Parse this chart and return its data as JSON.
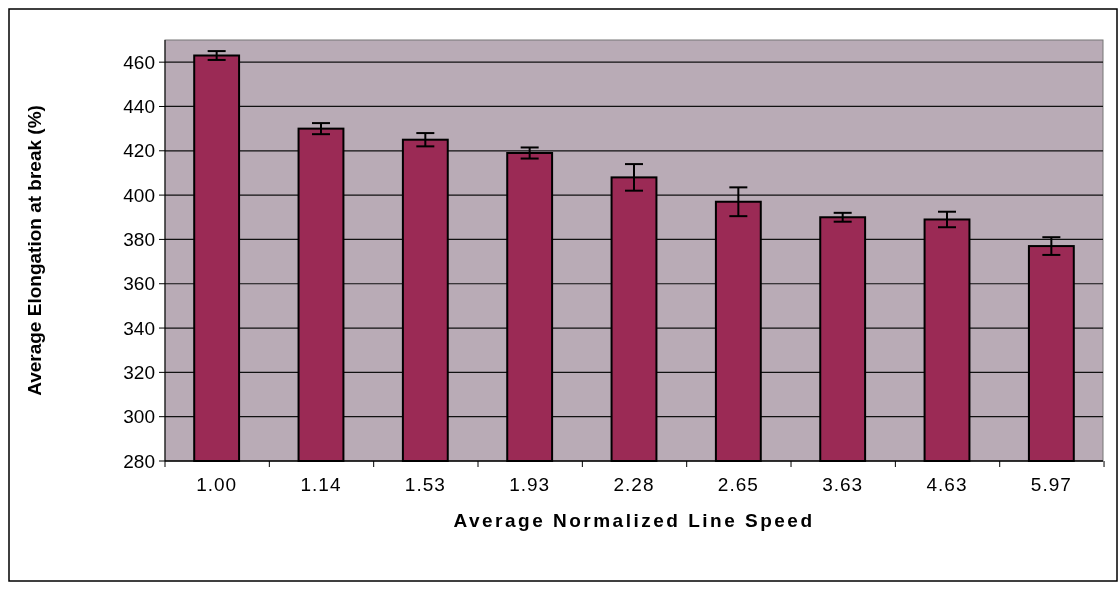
{
  "chart_data": {
    "type": "bar",
    "xlabel": "Average Normalized Line Speed",
    "ylabel": "Average Elongation at break (%)",
    "categories": [
      "1.00",
      "1.14",
      "1.53",
      "1.93",
      "2.28",
      "2.65",
      "3.63",
      "4.63",
      "5.97"
    ],
    "values": [
      463,
      430,
      425,
      419,
      408,
      397,
      390,
      389,
      377
    ],
    "errors": [
      2,
      2.5,
      3,
      2.5,
      6,
      6.5,
      2,
      3.5,
      4
    ],
    "color": "#9b2a55",
    "ylim": [
      280,
      470
    ],
    "yticks": [
      280,
      300,
      320,
      340,
      360,
      380,
      400,
      420,
      440,
      460
    ],
    "grid": "y"
  }
}
